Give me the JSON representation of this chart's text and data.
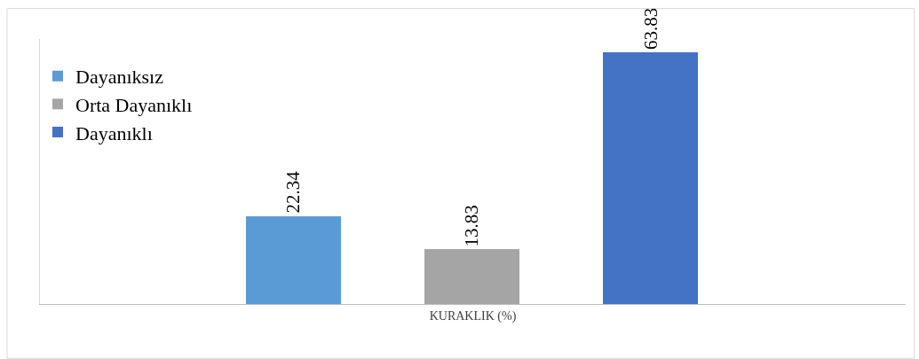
{
  "chart_data": {
    "type": "bar",
    "categories": [
      null,
      null,
      null
    ],
    "xlabel": "KURAKLIK (%)",
    "stacked": true,
    "series": [
      {
        "name": "Dayanıksız",
        "color": "#5b9bd5",
        "values": [
          22.34,
          null,
          null
        ]
      },
      {
        "name": "Orta Dayanıklı",
        "color": "#a5a5a5",
        "values": [
          null,
          13.83,
          null
        ]
      },
      {
        "name": "Dayanıklı",
        "color": "#4472c4",
        "values": [
          null,
          null,
          63.83
        ]
      }
    ],
    "data_labels": true,
    "legend": "top left",
    "tick_labels": false
  }
}
